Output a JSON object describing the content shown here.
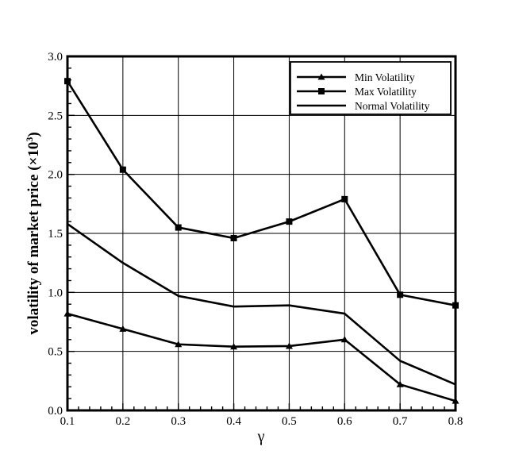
{
  "chart_data": {
    "type": "line",
    "xlabel": "γ",
    "ylabel": "volatility of market price (×10",
    "ylabel_superscript": "3",
    "ylabel_suffix": ")",
    "xlim": [
      0.1,
      0.8
    ],
    "ylim": [
      0.0,
      3.0
    ],
    "grid": true,
    "legend_position": "top-right",
    "x": [
      0.1,
      0.2,
      0.3,
      0.4,
      0.5,
      0.6,
      0.7,
      0.8
    ],
    "x_tick_labels": [
      "0.1",
      "0.2",
      "0.3",
      "0.4",
      "0.5",
      "0.6",
      "0.7",
      "0.8"
    ],
    "y_tick_values": [
      0.0,
      0.5,
      1.0,
      1.5,
      2.0,
      2.5,
      3.0
    ],
    "y_tick_labels": [
      "0.0",
      "0.5",
      "1.0",
      "1.5",
      "2.0",
      "2.5",
      "3.0"
    ],
    "series": [
      {
        "name": "Min Volatility",
        "marker": "triangle",
        "color": "#000000",
        "values": [
          0.82,
          0.69,
          0.56,
          0.54,
          0.545,
          0.6,
          0.22,
          0.08
        ]
      },
      {
        "name": "Max Volatility",
        "marker": "square",
        "color": "#000000",
        "values": [
          2.79,
          2.04,
          1.55,
          1.46,
          1.6,
          1.79,
          0.98,
          0.89
        ]
      },
      {
        "name": "Normal Volatility",
        "marker": "none",
        "color": "#000000",
        "values": [
          1.58,
          1.25,
          0.97,
          0.88,
          0.89,
          0.82,
          0.42,
          0.22
        ]
      }
    ]
  }
}
